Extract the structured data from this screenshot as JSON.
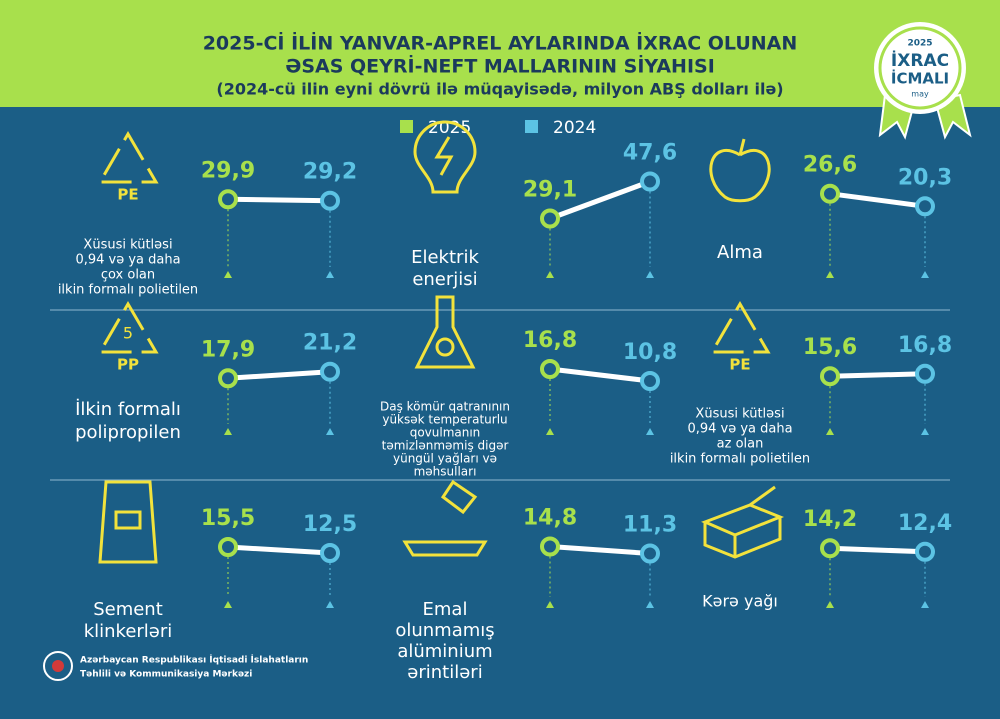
{
  "header": {
    "title_lines": [
      "2025-Cİ İLİN YANVAR-APREL AYLARINDA İXRAC OLUNAN",
      "ƏSAS QEYRİ-NEFT MALLARININ SİYAHISI"
    ],
    "subtitle": "(2024-cü ilin eyni dövrü ilə müqayisədə, milyon ABŞ dolları ilə)"
  },
  "badge": {
    "year": "2025",
    "line1": "İXRAC",
    "line2": "İCMALI",
    "month": "may"
  },
  "legend": [
    {
      "name": "2025",
      "color": "#a8e04c"
    },
    {
      "name": "2024",
      "color": "#5cc3e4"
    }
  ],
  "chart_data": [
    {
      "type": "slope",
      "icon_text": "PE",
      "label": [
        "Xüsusi kütləsi",
        "0,94 və ya daha",
        "çox olan",
        "ilkin formalı polietilen"
      ],
      "values": [
        29.9,
        29.2
      ],
      "value_labels": [
        "29,9",
        "29,2"
      ]
    },
    {
      "type": "slope",
      "label": [
        "Elektrik",
        "enerjisi"
      ],
      "values": [
        29.1,
        47.6
      ],
      "value_labels": [
        "29,1",
        "47,6"
      ]
    },
    {
      "type": "slope",
      "label": [
        "Alma"
      ],
      "values": [
        26.6,
        20.3
      ],
      "value_labels": [
        "26,6",
        "20,3"
      ]
    },
    {
      "type": "slope",
      "icon_text": "PP",
      "icon_number": "5",
      "label": [
        "İlkin formalı",
        "polipropilen"
      ],
      "values": [
        17.9,
        21.2
      ],
      "value_labels": [
        "17,9",
        "21,2"
      ]
    },
    {
      "type": "slope",
      "label": [
        "Daş kömür qatranının",
        "yüksək temperaturlu",
        "qovulmanın",
        "təmizlənməmiş digər",
        "yüngül yağları və",
        "məhsulları"
      ],
      "values": [
        16.8,
        10.8
      ],
      "value_labels": [
        "16,8",
        "10,8"
      ]
    },
    {
      "type": "slope",
      "icon_text": "PE",
      "label": [
        "Xüsusi kütləsi",
        "0,94 və ya daha",
        "az olan",
        "ilkin formalı polietilen"
      ],
      "values": [
        15.6,
        16.8
      ],
      "value_labels": [
        "15,6",
        "16,8"
      ]
    },
    {
      "type": "slope",
      "label": [
        "Sement",
        "klinkerləri"
      ],
      "values": [
        15.5,
        12.5
      ],
      "value_labels": [
        "15,5",
        "12,5"
      ]
    },
    {
      "type": "slope",
      "label": [
        "Emal",
        "olunmamış",
        "alüminium",
        "ərintiləri"
      ],
      "values": [
        14.8,
        11.3
      ],
      "value_labels": [
        "14,8",
        "11,3"
      ]
    },
    {
      "type": "slope",
      "label": [
        "Kərə yağı"
      ],
      "values": [
        14.2,
        12.4
      ],
      "value_labels": [
        "14,2",
        "12,4"
      ]
    }
  ],
  "footer": [
    "Azərbaycan Respublikası İqtisadi İslahatların",
    "Təhlili və Kommunikasiya Mərkəzi"
  ]
}
